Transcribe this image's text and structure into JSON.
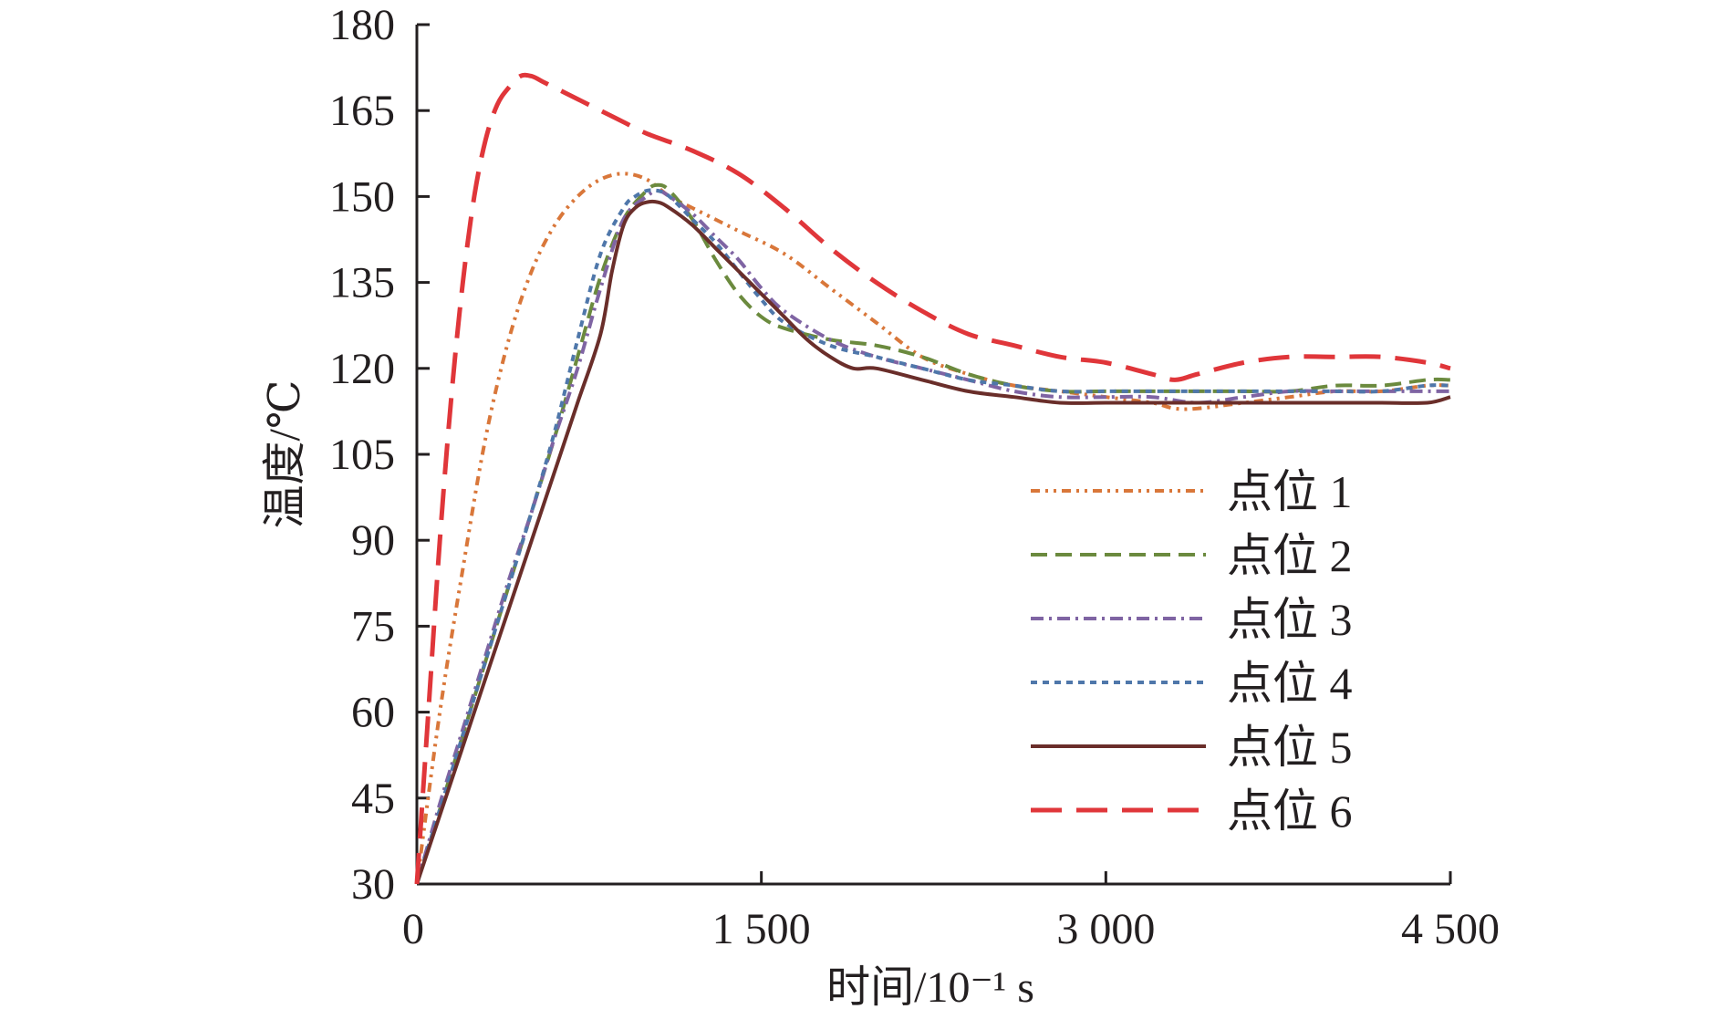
{
  "chart_data": {
    "type": "line",
    "title": "",
    "xlabel": "时间/10⁻¹ s",
    "ylabel": "温度/℃",
    "xlim": [
      0,
      4500
    ],
    "ylim": [
      30,
      180
    ],
    "xticks": [
      0,
      1500,
      3000,
      4500
    ],
    "xtick_labels": [
      "0",
      "1 500",
      "3 000",
      "4 500"
    ],
    "yticks": [
      30,
      45,
      60,
      75,
      90,
      105,
      120,
      135,
      150,
      165,
      180
    ],
    "ytick_labels": [
      "30",
      "45",
      "60",
      "75",
      "90",
      "105",
      "120",
      "135",
      "150",
      "165",
      "180"
    ],
    "grid": false,
    "legend_position": "center-right",
    "series": [
      {
        "name": "点位 1",
        "color": "#d9773a",
        "dash": "dash-dot-dot",
        "x": [
          0,
          100,
          200,
          300,
          400,
          500,
          600,
          700,
          800,
          900,
          1000,
          1100,
          1200,
          1300,
          1400,
          1600,
          1800,
          2000,
          2200,
          2400,
          2600,
          2800,
          3000,
          3200,
          3300,
          3400,
          3600,
          3800,
          4000,
          4200,
          4400,
          4500
        ],
        "y": [
          30,
          60,
          85,
          108,
          125,
          137,
          145,
          150,
          153,
          154,
          153,
          150,
          148,
          146,
          144,
          140,
          134,
          128,
          122,
          119,
          117,
          116,
          115,
          114,
          113,
          113,
          114,
          115,
          116,
          116,
          117,
          117
        ]
      },
      {
        "name": "点位 2",
        "color": "#6b8a3e",
        "dash": "dashed",
        "x": [
          0,
          100,
          200,
          300,
          400,
          500,
          600,
          700,
          800,
          900,
          1000,
          1050,
          1100,
          1200,
          1300,
          1400,
          1500,
          1600,
          1800,
          2000,
          2200,
          2400,
          2600,
          2800,
          3000,
          3200,
          3400,
          3600,
          3800,
          4000,
          4200,
          4400,
          4500
        ],
        "y": [
          30,
          43,
          56,
          69,
          82,
          95,
          108,
          122,
          136,
          146,
          151,
          152,
          151,
          146,
          139,
          133,
          129,
          127,
          125,
          124,
          122,
          119,
          117,
          116,
          116,
          116,
          116,
          116,
          116,
          117,
          117,
          118,
          118
        ]
      },
      {
        "name": "点位 3",
        "color": "#7f64a3",
        "dash": "dash-dot",
        "x": [
          0,
          100,
          200,
          300,
          400,
          500,
          600,
          700,
          800,
          900,
          1000,
          1050,
          1100,
          1200,
          1300,
          1400,
          1500,
          1600,
          1800,
          2000,
          2200,
          2400,
          2600,
          2800,
          3000,
          3200,
          3400,
          3600,
          3800,
          4000,
          4200,
          4400,
          4500
        ],
        "y": [
          30,
          44,
          57,
          70,
          83,
          95,
          108,
          120,
          134,
          146,
          150,
          151,
          150,
          147,
          143,
          139,
          134,
          130,
          125,
          122,
          120,
          118,
          116,
          115,
          115,
          115,
          114,
          115,
          116,
          116,
          116,
          116,
          116
        ]
      },
      {
        "name": "点位 4",
        "color": "#4f77aa",
        "dash": "dotted",
        "x": [
          0,
          100,
          200,
          300,
          400,
          500,
          600,
          700,
          800,
          900,
          950,
          1000,
          1050,
          1100,
          1200,
          1300,
          1400,
          1500,
          1600,
          1800,
          2000,
          2200,
          2400,
          2600,
          2800,
          3000,
          3200,
          3400,
          3600,
          3800,
          4000,
          4200,
          4400,
          4500
        ],
        "y": [
          30,
          43,
          56,
          69,
          82,
          95,
          109,
          125,
          140,
          148,
          150,
          151,
          151,
          150,
          146,
          142,
          137,
          132,
          128,
          124,
          122,
          120,
          118,
          117,
          116,
          116,
          116,
          116,
          116,
          116,
          116,
          116,
          117,
          117
        ]
      },
      {
        "name": "点位 5",
        "color": "#6a2e2a",
        "dash": "solid",
        "x": [
          0,
          100,
          200,
          300,
          400,
          500,
          600,
          700,
          800,
          850,
          900,
          950,
          1000,
          1050,
          1100,
          1200,
          1300,
          1400,
          1500,
          1600,
          1700,
          1800,
          1900,
          2000,
          2200,
          2400,
          2600,
          2800,
          3000,
          3200,
          3400,
          3600,
          3800,
          4000,
          4200,
          4400,
          4500
        ],
        "y": [
          30,
          42,
          54,
          66,
          78,
          90,
          102,
          114,
          126,
          137,
          145,
          148,
          149,
          149,
          148,
          145,
          141,
          137,
          133,
          129,
          125,
          122,
          120,
          120,
          118,
          116,
          115,
          114,
          114,
          114,
          114,
          114,
          114,
          114,
          114,
          114,
          115
        ]
      },
      {
        "name": "点位 6",
        "color": "#e0363a",
        "dash": "long-dash",
        "x": [
          0,
          50,
          100,
          150,
          200,
          250,
          300,
          350,
          400,
          450,
          500,
          550,
          600,
          650,
          700,
          800,
          900,
          1000,
          1200,
          1400,
          1600,
          1800,
          2000,
          2200,
          2400,
          2600,
          2800,
          3000,
          3200,
          3300,
          3400,
          3600,
          3800,
          4000,
          4200,
          4400,
          4500
        ],
        "y": [
          30,
          60,
          90,
          115,
          135,
          150,
          160,
          166,
          169,
          171,
          171,
          170,
          169,
          168,
          167,
          165,
          163,
          161,
          158,
          154,
          148,
          141,
          135,
          130,
          126,
          124,
          122,
          121,
          119,
          118,
          119,
          121,
          122,
          122,
          122,
          121,
          120
        ]
      }
    ]
  }
}
